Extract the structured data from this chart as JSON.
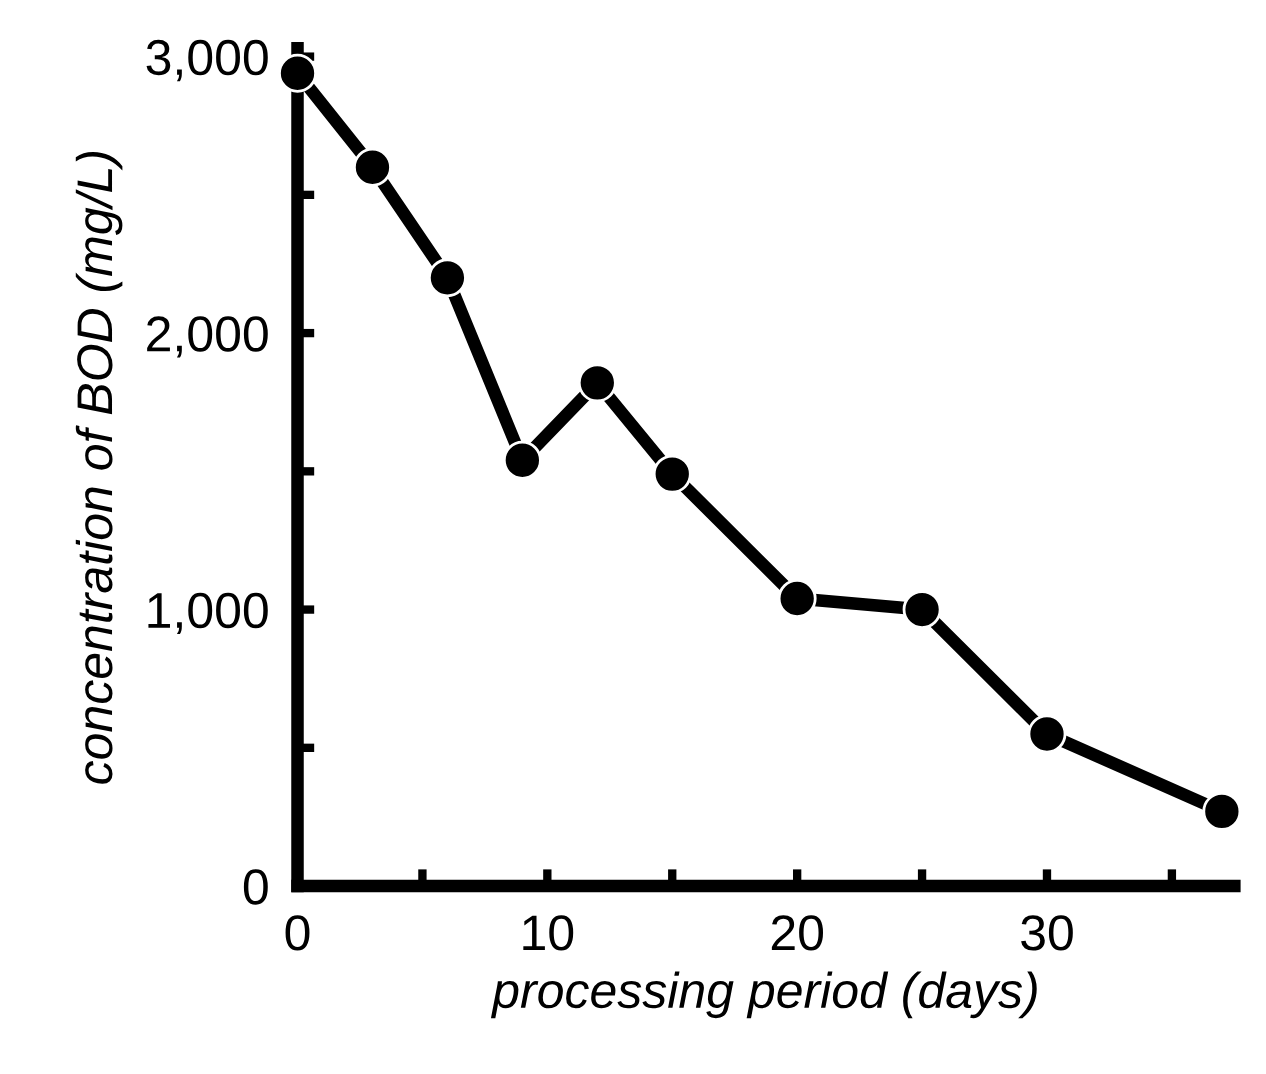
{
  "chart_data": {
    "type": "line",
    "xlabel": "processing period (days)",
    "ylabel": "concentration of BOD (mg/L)",
    "x": [
      0,
      3,
      6,
      9,
      12,
      15,
      20,
      25,
      30,
      37
    ],
    "series": [
      {
        "color": "#000000",
        "values": [
          2940,
          2600,
          2200,
          1540,
          1820,
          1490,
          1040,
          1000,
          550,
          270
        ]
      }
    ],
    "marker": "circle",
    "line_style": "solid",
    "grid": false,
    "xlim": [
      0,
      37.5
    ],
    "ylim": [
      0,
      3030
    ],
    "xticks": [
      0,
      {
        "value": 5,
        "label": null
      },
      10,
      {
        "value": 15,
        "label": null
      },
      20,
      {
        "value": 25,
        "label": null
      },
      30,
      {
        "value": 35,
        "label": null
      }
    ],
    "yticks": [
      {
        "value": 0,
        "label": "0"
      },
      {
        "value": 500,
        "label": null
      },
      {
        "value": 1000,
        "label": "1,000"
      },
      {
        "value": 1500,
        "label": null
      },
      {
        "value": 2000,
        "label": "2,000"
      },
      {
        "value": 2500,
        "label": null
      },
      {
        "value": 3000,
        "label": "3,000"
      }
    ]
  }
}
